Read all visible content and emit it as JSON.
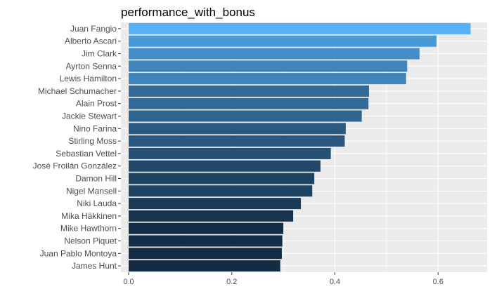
{
  "chart_data": {
    "type": "bar",
    "orientation": "horizontal",
    "title": "performance_with_bonus",
    "xlabel": "",
    "ylabel": "",
    "categories": [
      "Juan Fangio",
      "Alberto Ascari",
      "Jim Clark",
      "Ayrton Senna",
      "Lewis Hamilton",
      "Michael Schumacher",
      "Alain Prost",
      "Jackie Stewart",
      "Nino Farina",
      "Stirling Moss",
      "Sebastian Vettel",
      "José Froilán González",
      "Damon Hill",
      "Nigel Mansell",
      "Niki Lauda",
      "Mika Häkkinen",
      "Mike Hawthorn",
      "Nelson Piquet",
      "Juan Pablo Montoya",
      "James Hunt"
    ],
    "values": [
      0.663,
      0.597,
      0.564,
      0.54,
      0.538,
      0.466,
      0.465,
      0.452,
      0.421,
      0.419,
      0.392,
      0.372,
      0.36,
      0.356,
      0.334,
      0.319,
      0.3,
      0.298,
      0.297,
      0.294
    ],
    "xlim": [
      -0.015,
      0.695
    ],
    "xticks": [
      "0.0",
      "0.2",
      "0.4",
      "0.6"
    ],
    "grid": true,
    "legend": "none",
    "colors": {
      "panel": "#ebebeb",
      "grid": "#ffffff",
      "bar_high": "#56b1f7",
      "bar_low": "#132b43"
    }
  }
}
